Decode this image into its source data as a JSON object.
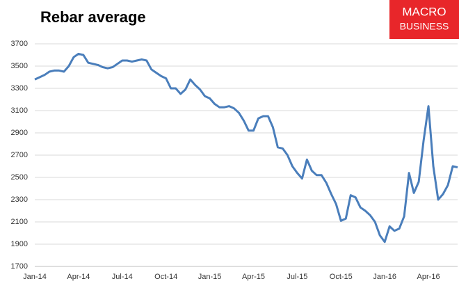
{
  "chart_data": {
    "type": "line",
    "title": "Rebar average",
    "x": [
      "Jan-14",
      null,
      null,
      null,
      null,
      null,
      null,
      null,
      null,
      "Apr-14",
      null,
      null,
      null,
      null,
      null,
      null,
      null,
      null,
      "Jul-14",
      null,
      null,
      null,
      null,
      null,
      null,
      null,
      null,
      "Oct-14",
      null,
      null,
      null,
      null,
      null,
      null,
      null,
      null,
      "Jan-15",
      null,
      null,
      null,
      null,
      null,
      null,
      null,
      null,
      "Apr-15",
      null,
      null,
      null,
      null,
      null,
      null,
      null,
      null,
      "Jul-15",
      null,
      null,
      null,
      null,
      null,
      null,
      null,
      null,
      "Oct-15",
      null,
      null,
      null,
      null,
      null,
      null,
      null,
      null,
      "Jan-16",
      null,
      null,
      null,
      null,
      null,
      null,
      null,
      null,
      "Apr-16",
      null,
      null,
      null,
      null,
      null,
      null
    ],
    "series": [
      {
        "name": "Rebar average",
        "color": "#4a7ebb",
        "values": [
          3380,
          3400,
          3420,
          3450,
          3460,
          3460,
          3450,
          3500,
          3580,
          3610,
          3600,
          3530,
          3520,
          3510,
          3490,
          3480,
          3490,
          3520,
          3550,
          3550,
          3540,
          3550,
          3560,
          3550,
          3470,
          3440,
          3410,
          3390,
          3300,
          3300,
          3250,
          3290,
          3380,
          3330,
          3290,
          3230,
          3210,
          3160,
          3130,
          3130,
          3140,
          3120,
          3080,
          3010,
          2920,
          2920,
          3030,
          3050,
          3050,
          2950,
          2770,
          2760,
          2700,
          2600,
          2540,
          2490,
          2660,
          2560,
          2520,
          2520,
          2450,
          2350,
          2260,
          2110,
          2130,
          2340,
          2320,
          2230,
          2200,
          2160,
          2100,
          1980,
          1920,
          2060,
          2020,
          2040,
          2150,
          2540,
          2360,
          2460,
          2830,
          3140,
          2600,
          2300,
          2350,
          2430,
          2600,
          2590
        ]
      }
    ],
    "ylim": [
      1700,
      3700
    ],
    "yticks": [
      1700,
      1900,
      2100,
      2300,
      2500,
      2700,
      2900,
      3100,
      3300,
      3500,
      3700
    ],
    "grid": true
  },
  "logo": {
    "line1": "MACRO",
    "line2": "BUSINESS"
  }
}
